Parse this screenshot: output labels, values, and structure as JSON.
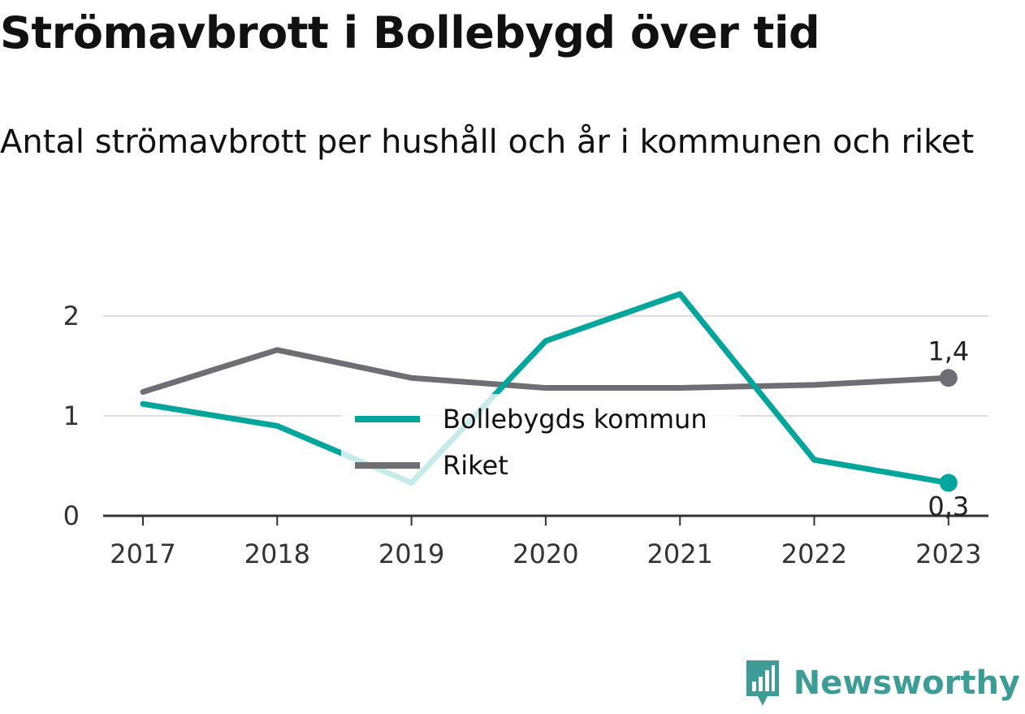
{
  "title": "Strömavbrott i Bollebygd över tid",
  "subtitle": "Antal strömavbrott per hushåll och år i kommunen och riket",
  "brand": {
    "name": "Newsworthy",
    "icon": "newsworthy-logo-icon",
    "color": "#3e9c96"
  },
  "colors": {
    "kommun": "#00a59b",
    "riket": "#6f6e74",
    "grid": "#dddddd",
    "axis": "#333333"
  },
  "chart_data": {
    "type": "line",
    "categories": [
      "2017",
      "2018",
      "2019",
      "2020",
      "2021",
      "2022",
      "2023"
    ],
    "series": [
      {
        "name": "Bollebygds kommun",
        "values": [
          1.12,
          0.9,
          0.33,
          1.75,
          2.22,
          0.56,
          0.33
        ],
        "end_label": "0,3"
      },
      {
        "name": "Riket",
        "values": [
          1.24,
          1.66,
          1.38,
          1.28,
          1.28,
          1.31,
          1.38
        ],
        "end_label": "1,4"
      }
    ],
    "yticks": [
      0,
      1,
      2
    ],
    "ylim": [
      0,
      2.3
    ],
    "grid": true,
    "legend": "center"
  }
}
